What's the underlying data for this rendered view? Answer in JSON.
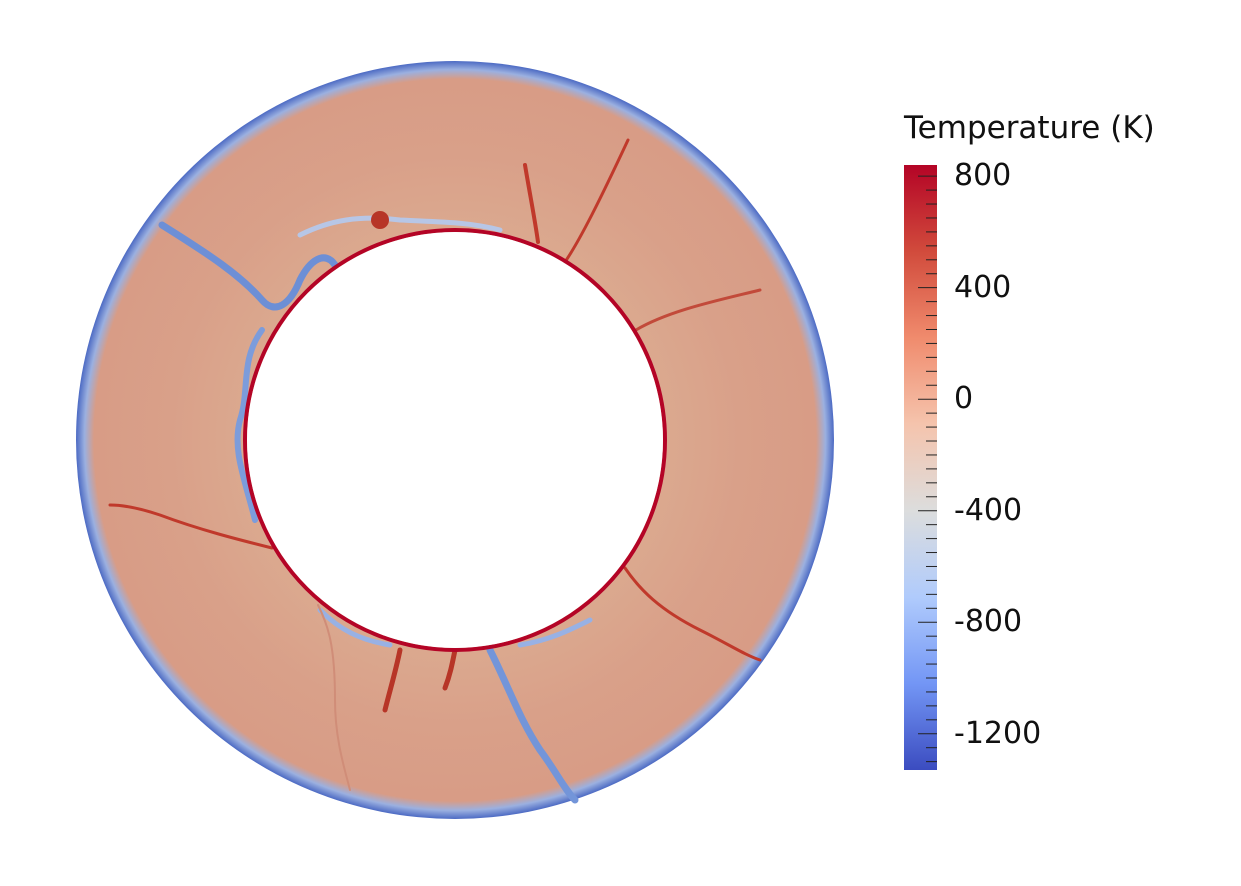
{
  "legend": {
    "title": "Temperature (K)",
    "ticks": [
      {
        "label": "800",
        "value": 800
      },
      {
        "label": "400",
        "value": 400
      },
      {
        "label": "0",
        "value": 0
      },
      {
        "label": "-400",
        "value": -400
      },
      {
        "label": "-800",
        "value": -800
      },
      {
        "label": "-1200",
        "value": -1200
      }
    ],
    "range": [
      -1330,
      840
    ],
    "colormap": [
      "#3b4cc0",
      "#7396f5",
      "#b0cbfc",
      "#dcdddd",
      "#f5c4ad",
      "#f08b6d",
      "#d14b3c",
      "#b40426"
    ]
  },
  "field": {
    "annulus_color": "#dca18a",
    "outer_edge_color": "#4f6fc7",
    "plume_hot_color": "#c0392b",
    "plume_cold_color": "#7395d9",
    "inner_boundary_color": "#b40426"
  }
}
